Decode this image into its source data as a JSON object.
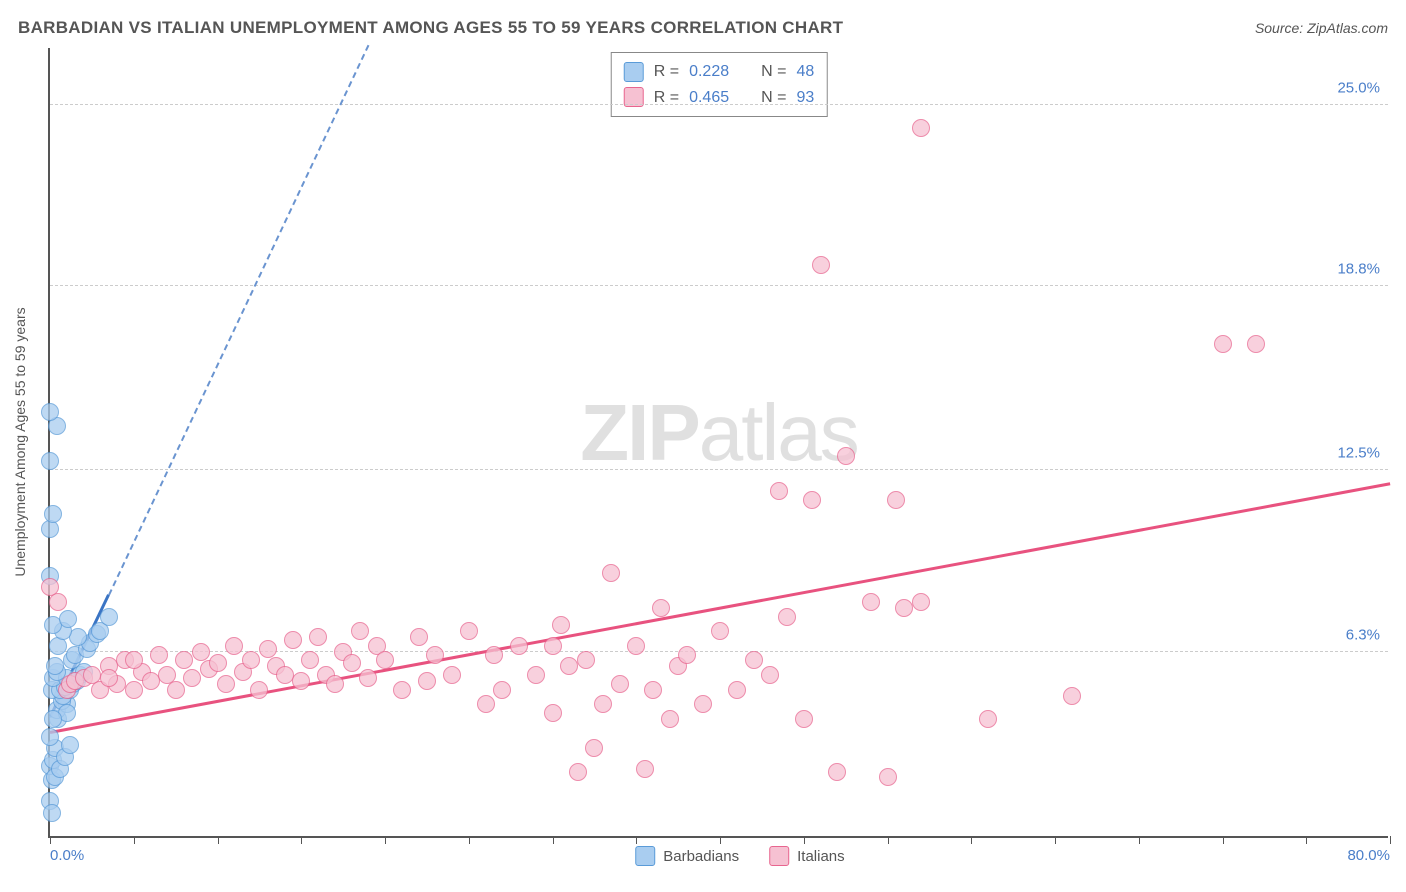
{
  "header": {
    "title": "BARBADIAN VS ITALIAN UNEMPLOYMENT AMONG AGES 55 TO 59 YEARS CORRELATION CHART",
    "source_label": "Source:",
    "source_value": "ZipAtlas.com"
  },
  "watermark": {
    "part1": "ZIP",
    "part2": "atlas"
  },
  "chart": {
    "type": "scatter",
    "y_axis_title": "Unemployment Among Ages 55 to 59 years",
    "background_color": "#ffffff",
    "grid_color": "#cccccc",
    "axis_color": "#555555",
    "tick_label_color": "#4a7ec9",
    "xlim": [
      0,
      80
    ],
    "ylim": [
      0,
      27
    ],
    "xtick_step": 5,
    "xtick_labels": {
      "0": "0.0%",
      "80": "80.0%"
    },
    "ytick_positions": [
      6.3,
      12.5,
      18.8,
      25.0
    ],
    "ytick_labels": [
      "6.3%",
      "12.5%",
      "18.8%",
      "25.0%"
    ],
    "marker_radius": 9,
    "marker_stroke_width": 1.5,
    "series": [
      {
        "name": "Barbadians",
        "fill_color": "#a9cdf0",
        "stroke_color": "#5a9bd8",
        "swatch_fill": "#a9cdf0",
        "swatch_stroke": "#5a9bd8",
        "trend_color": "#3a74c4",
        "trend_width": 3,
        "trend_dash_color": "#6a94d0",
        "trend": {
          "x1": 0,
          "y1": 4.0,
          "x2": 3.5,
          "y2": 8.2,
          "dash_to_x": 19,
          "dash_to_y": 27
        },
        "points": [
          [
            0.0,
            1.2
          ],
          [
            0.1,
            1.9
          ],
          [
            0.0,
            2.4
          ],
          [
            0.2,
            2.6
          ],
          [
            0.3,
            3.0
          ],
          [
            0.0,
            3.4
          ],
          [
            0.5,
            4.0
          ],
          [
            0.4,
            4.3
          ],
          [
            1.0,
            4.5
          ],
          [
            0.7,
            4.6
          ],
          [
            0.8,
            4.8
          ],
          [
            0.1,
            5.0
          ],
          [
            0.6,
            5.0
          ],
          [
            1.2,
            5.0
          ],
          [
            0.9,
            5.1
          ],
          [
            1.4,
            5.2
          ],
          [
            1.6,
            5.3
          ],
          [
            0.2,
            5.4
          ],
          [
            1.0,
            5.4
          ],
          [
            1.8,
            5.5
          ],
          [
            0.4,
            5.6
          ],
          [
            2.0,
            5.6
          ],
          [
            0.3,
            5.8
          ],
          [
            1.3,
            6.0
          ],
          [
            1.5,
            6.2
          ],
          [
            2.2,
            6.4
          ],
          [
            0.5,
            6.5
          ],
          [
            2.4,
            6.6
          ],
          [
            1.7,
            6.8
          ],
          [
            2.8,
            6.9
          ],
          [
            0.8,
            7.0
          ],
          [
            3.0,
            7.0
          ],
          [
            0.2,
            7.2
          ],
          [
            1.1,
            7.4
          ],
          [
            3.5,
            7.5
          ],
          [
            0.0,
            8.9
          ],
          [
            1.0,
            4.2
          ],
          [
            0.2,
            4.0
          ],
          [
            0.0,
            10.5
          ],
          [
            0.2,
            11.0
          ],
          [
            0.0,
            12.8
          ],
          [
            0.4,
            14.0
          ],
          [
            0.0,
            14.5
          ],
          [
            0.1,
            0.8
          ],
          [
            0.3,
            2.0
          ],
          [
            0.6,
            2.3
          ],
          [
            0.9,
            2.7
          ],
          [
            1.2,
            3.1
          ]
        ]
      },
      {
        "name": "Italians",
        "fill_color": "#f6c1d2",
        "stroke_color": "#e8658f",
        "swatch_fill": "#f6c1d2",
        "swatch_stroke": "#e8658f",
        "trend_color": "#e8527f",
        "trend_width": 3,
        "trend": {
          "x1": 0,
          "y1": 3.5,
          "x2": 80,
          "y2": 12.0
        },
        "points": [
          [
            0.5,
            8.0
          ],
          [
            0.0,
            8.5
          ],
          [
            1.0,
            5.0
          ],
          [
            1.2,
            5.2
          ],
          [
            1.5,
            5.3
          ],
          [
            2.0,
            5.4
          ],
          [
            2.5,
            5.5
          ],
          [
            3.0,
            5.0
          ],
          [
            3.5,
            5.8
          ],
          [
            4.0,
            5.2
          ],
          [
            4.5,
            6.0
          ],
          [
            5.0,
            5.0
          ],
          [
            5.5,
            5.6
          ],
          [
            6.0,
            5.3
          ],
          [
            6.5,
            6.2
          ],
          [
            7.0,
            5.5
          ],
          [
            7.5,
            5.0
          ],
          [
            8.0,
            6.0
          ],
          [
            8.5,
            5.4
          ],
          [
            9.0,
            6.3
          ],
          [
            9.5,
            5.7
          ],
          [
            10.0,
            5.9
          ],
          [
            10.5,
            5.2
          ],
          [
            11.0,
            6.5
          ],
          [
            11.5,
            5.6
          ],
          [
            12.0,
            6.0
          ],
          [
            12.5,
            5.0
          ],
          [
            13.0,
            6.4
          ],
          [
            13.5,
            5.8
          ],
          [
            14.0,
            5.5
          ],
          [
            14.5,
            6.7
          ],
          [
            15.0,
            5.3
          ],
          [
            15.5,
            6.0
          ],
          [
            16.0,
            6.8
          ],
          [
            16.5,
            5.5
          ],
          [
            17.0,
            5.2
          ],
          [
            17.5,
            6.3
          ],
          [
            18.0,
            5.9
          ],
          [
            18.5,
            7.0
          ],
          [
            19.0,
            5.4
          ],
          [
            19.5,
            6.5
          ],
          [
            20.0,
            6.0
          ],
          [
            21.0,
            5.0
          ],
          [
            22.0,
            6.8
          ],
          [
            22.5,
            5.3
          ],
          [
            23.0,
            6.2
          ],
          [
            24.0,
            5.5
          ],
          [
            25.0,
            7.0
          ],
          [
            26.0,
            4.5
          ],
          [
            26.5,
            6.2
          ],
          [
            27.0,
            5.0
          ],
          [
            28.0,
            6.5
          ],
          [
            29.0,
            5.5
          ],
          [
            30.0,
            4.2
          ],
          [
            30.5,
            7.2
          ],
          [
            31.0,
            5.8
          ],
          [
            31.5,
            2.2
          ],
          [
            32.0,
            6.0
          ],
          [
            32.5,
            3.0
          ],
          [
            33.0,
            4.5
          ],
          [
            33.5,
            9.0
          ],
          [
            34.0,
            5.2
          ],
          [
            35.0,
            6.5
          ],
          [
            35.5,
            2.3
          ],
          [
            36.0,
            5.0
          ],
          [
            36.5,
            7.8
          ],
          [
            37.0,
            4.0
          ],
          [
            37.5,
            5.8
          ],
          [
            38.0,
            6.2
          ],
          [
            39.0,
            4.5
          ],
          [
            40.0,
            7.0
          ],
          [
            41.0,
            5.0
          ],
          [
            42.0,
            6.0
          ],
          [
            43.0,
            5.5
          ],
          [
            43.5,
            11.8
          ],
          [
            44.0,
            7.5
          ],
          [
            45.0,
            4.0
          ],
          [
            45.5,
            11.5
          ],
          [
            46.0,
            19.5
          ],
          [
            47.0,
            2.2
          ],
          [
            47.5,
            13.0
          ],
          [
            49.0,
            8.0
          ],
          [
            50.0,
            2.0
          ],
          [
            50.5,
            11.5
          ],
          [
            51.0,
            7.8
          ],
          [
            52.0,
            24.2
          ],
          [
            52.0,
            8.0
          ],
          [
            56.0,
            4.0
          ],
          [
            61.0,
            4.8
          ],
          [
            70.0,
            16.8
          ],
          [
            72.0,
            16.8
          ],
          [
            3.5,
            5.4
          ],
          [
            5.0,
            6.0
          ],
          [
            30.0,
            6.5
          ]
        ]
      }
    ],
    "stats_box": {
      "rows": [
        {
          "swatch": 0,
          "r_label": "R =",
          "r_value": "0.228",
          "n_label": "N =",
          "n_value": "48"
        },
        {
          "swatch": 1,
          "r_label": "R =",
          "r_value": "0.465",
          "n_label": "N =",
          "n_value": "93"
        }
      ]
    },
    "legend_bottom": [
      {
        "swatch": 0,
        "label": "Barbadians"
      },
      {
        "swatch": 1,
        "label": "Italians"
      }
    ]
  }
}
